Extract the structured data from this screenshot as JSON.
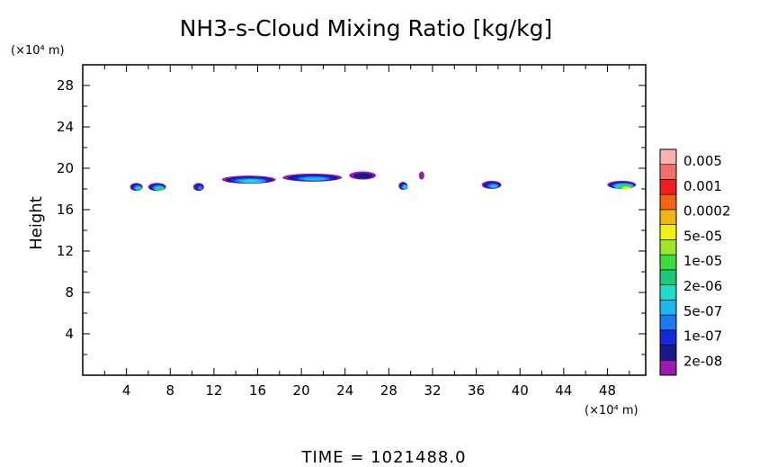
{
  "chart_data": {
    "type": "heatmap",
    "title": "NH3-s-Cloud Mixing Ratio [kg/kg]",
    "ylabel": "Height",
    "x_unit_label": "(×10⁴ m)",
    "y_unit_label": "(×10⁴ m)",
    "xlim": [
      0,
      51.5
    ],
    "ylim": [
      0,
      30
    ],
    "x_ticks": [
      4,
      8,
      12,
      16,
      20,
      24,
      28,
      32,
      36,
      40,
      44,
      48
    ],
    "y_ticks": [
      4,
      8,
      12,
      16,
      20,
      24,
      28
    ],
    "colorbar": {
      "labels": [
        "0.005",
        "0.001",
        "0.0002",
        "5e-05",
        "1e-05",
        "2e-06",
        "5e-07",
        "1e-07",
        "2e-08"
      ],
      "colors": [
        "#9a1aaa",
        "#1a1a8c",
        "#1428dc",
        "#1e78f0",
        "#1eb4f0",
        "#1edcc8",
        "#1ec878",
        "#3cdc3c",
        "#a0e628",
        "#f0f014",
        "#f0b414",
        "#f06414",
        "#f01e1e",
        "#f07070",
        "#f8b0b0"
      ]
    },
    "cloud_regions": [
      {
        "x": 4.9,
        "y": 18.2,
        "max_level": 7
      },
      {
        "x": 6.8,
        "y": 18.2,
        "max_level": 8
      },
      {
        "x": 10.6,
        "y": 18.2,
        "max_level": 4
      },
      {
        "x": 15.2,
        "y": 18.9,
        "max_level": 6
      },
      {
        "x": 21.0,
        "y": 19.1,
        "max_level": 5
      },
      {
        "x": 25.6,
        "y": 19.3,
        "max_level": 2
      },
      {
        "x": 29.3,
        "y": 18.3,
        "max_level": 7
      },
      {
        "x": 31.0,
        "y": 19.3,
        "max_level": 1
      },
      {
        "x": 37.4,
        "y": 18.4,
        "max_level": 5
      },
      {
        "x": 49.3,
        "y": 18.4,
        "max_level": 10
      }
    ],
    "footer": "TIME  =  1021488.0"
  }
}
